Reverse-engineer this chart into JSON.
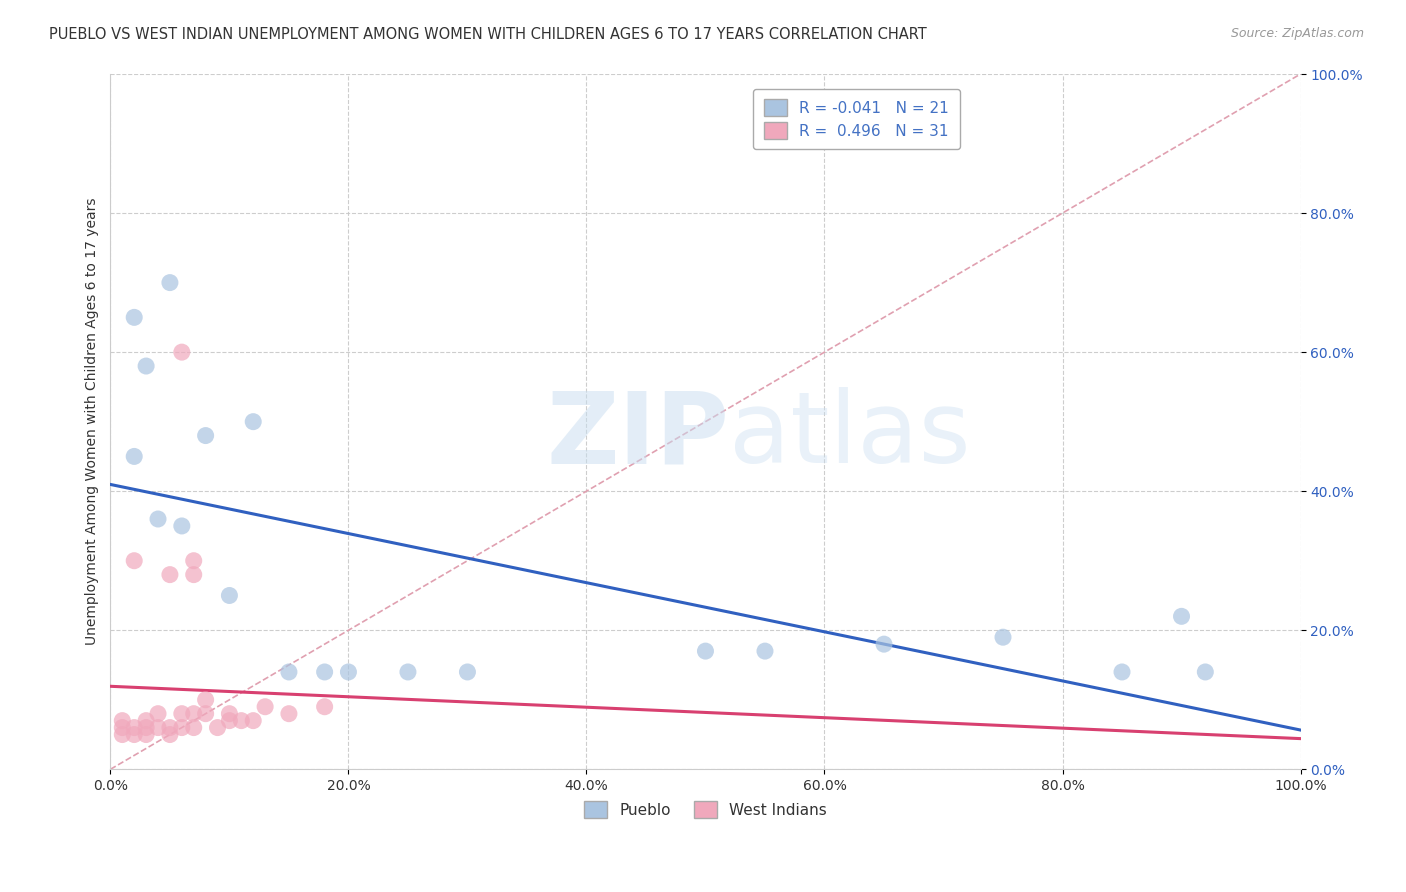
{
  "title": "PUEBLO VS WEST INDIAN UNEMPLOYMENT AMONG WOMEN WITH CHILDREN AGES 6 TO 17 YEARS CORRELATION CHART",
  "source": "Source: ZipAtlas.com",
  "ylabel": "Unemployment Among Women with Children Ages 6 to 17 years",
  "xlim": [
    0,
    100
  ],
  "ylim": [
    0,
    100
  ],
  "pueblo_R": -0.041,
  "pueblo_N": 21,
  "west_indian_R": 0.496,
  "west_indian_N": 31,
  "pueblo_color": "#aac4e0",
  "west_indian_color": "#f0a8bc",
  "pueblo_line_color": "#3060c0",
  "west_indian_line_color": "#d84070",
  "diagonal_color": "#e0a0b0",
  "watermark_zip": "ZIP",
  "watermark_atlas": "atlas",
  "background_color": "#ffffff",
  "grid_color": "#c8c8c8",
  "title_fontsize": 10.5,
  "axis_label_fontsize": 10,
  "tick_fontsize": 10,
  "legend_fontsize": 11,
  "pueblo_x": [
    2,
    3,
    5,
    8,
    12,
    15,
    20,
    25,
    30,
    50,
    55,
    65,
    75,
    85,
    90,
    92,
    2,
    4,
    6,
    10,
    18
  ],
  "pueblo_y": [
    65,
    58,
    70,
    48,
    50,
    14,
    14,
    14,
    14,
    17,
    17,
    18,
    19,
    14,
    22,
    14,
    45,
    36,
    35,
    25,
    14
  ],
  "west_indian_x": [
    1,
    1,
    1,
    2,
    2,
    2,
    3,
    3,
    3,
    4,
    4,
    5,
    5,
    5,
    6,
    6,
    6,
    7,
    7,
    7,
    7,
    8,
    8,
    9,
    10,
    10,
    11,
    12,
    13,
    15,
    18
  ],
  "west_indian_y": [
    5,
    6,
    7,
    5,
    6,
    30,
    5,
    6,
    7,
    6,
    8,
    5,
    6,
    28,
    6,
    8,
    60,
    6,
    28,
    30,
    8,
    8,
    10,
    6,
    7,
    8,
    7,
    7,
    9,
    8,
    9
  ]
}
